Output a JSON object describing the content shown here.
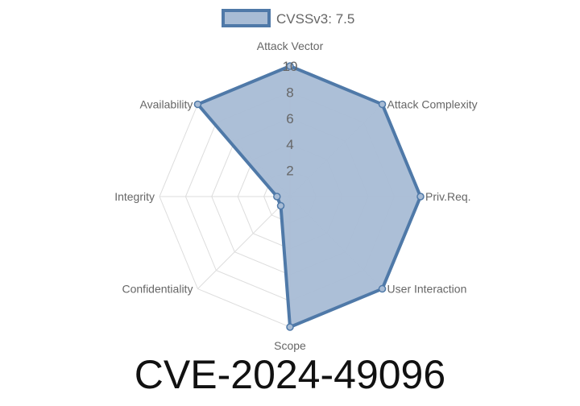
{
  "chart_data": {
    "type": "radar",
    "title": "CVE-2024-49096",
    "axes": [
      "Attack Vector",
      "Attack Complexity",
      "Priv.Req.",
      "User Interaction",
      "Scope",
      "Confidentiality",
      "Integrity",
      "Availability"
    ],
    "series": [
      {
        "name": "CVSSv3: 7.5",
        "values": [
          10,
          10,
          10,
          10,
          10,
          1,
          1,
          10
        ]
      }
    ],
    "rlim": [
      0,
      10
    ],
    "ticks": [
      "2",
      "4",
      "6",
      "8",
      "10"
    ],
    "tick_values": [
      2,
      4,
      6,
      8,
      10
    ],
    "grid": true,
    "legend_position": "top",
    "colors": {
      "line": "#4f79a8",
      "fill": "#a8bcd5",
      "grid": "#dddddd"
    }
  }
}
